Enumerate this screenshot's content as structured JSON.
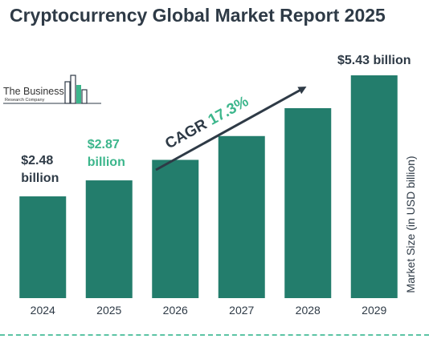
{
  "title": "Cryptocurrency Global Market Report 2025",
  "logo": {
    "line1": "The Business",
    "line2": "Research Company"
  },
  "colors": {
    "bar": "#237d6c",
    "title": "#2e3a46",
    "highlight": "#3cb68c",
    "dark_label": "#2e3a46",
    "rule": "#5cc4a4"
  },
  "chart_data": {
    "type": "bar",
    "title": "Cryptocurrency Global Market Report 2025",
    "xlabel": "",
    "ylabel": "Market Size (in USD billion)",
    "categories": [
      "2024",
      "2025",
      "2026",
      "2027",
      "2028",
      "2029"
    ],
    "values": [
      2.48,
      2.87,
      3.37,
      3.95,
      4.63,
      5.43
    ],
    "ylim": [
      0,
      5.43
    ],
    "grid": false,
    "data_labels": [
      {
        "index": 0,
        "line1": "$2.48",
        "line2": "billion",
        "color": "#2e3a46"
      },
      {
        "index": 1,
        "line1": "$2.87",
        "line2": "billion",
        "color": "#3cb68c"
      },
      {
        "index": 5,
        "line1": "$5.43 billion",
        "line2": "",
        "color": "#2e3a46"
      }
    ],
    "annotation": {
      "prefix": "CAGR",
      "value": "17.3%"
    }
  }
}
